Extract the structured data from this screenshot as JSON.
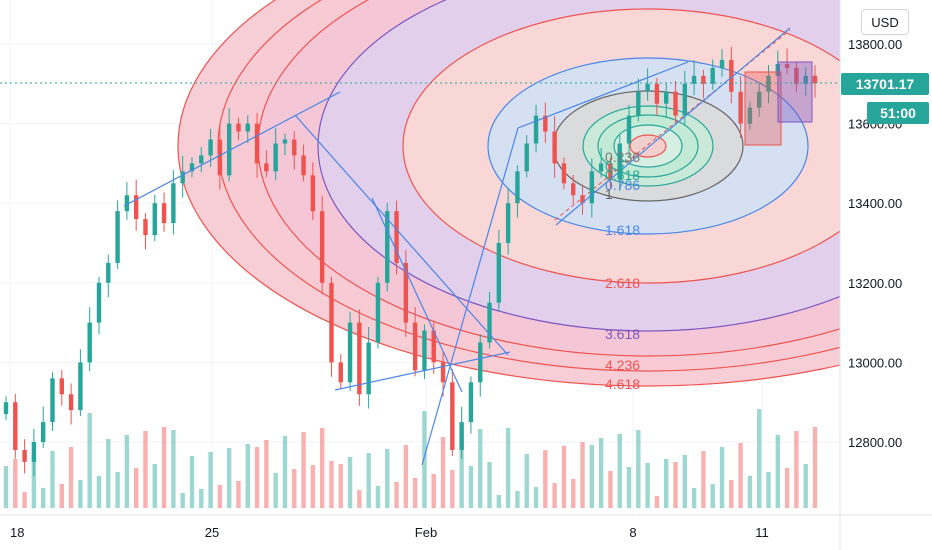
{
  "currency_label": "USD",
  "last_price": "13701.17",
  "countdown": "51:00",
  "colors": {
    "up": "#26a69a",
    "down": "#ef5350",
    "price_tag": "#26a69a",
    "trendline": "#4a86e8"
  },
  "fib_levels": [
    "0.236",
    "0.5",
    "0.618",
    "0.786",
    "1",
    "1.618",
    "2.618",
    "3.618",
    "4.236",
    "4.618"
  ],
  "chart_data": {
    "type": "candlestick",
    "x_ticks": [
      "18",
      "25",
      "Feb",
      "8",
      "11"
    ],
    "y_ticks": [
      "12800.00",
      "13000.00",
      "13200.00",
      "13400.00",
      "13600.00",
      "13800.00"
    ],
    "ylim": [
      12630,
      13900
    ],
    "grid": true,
    "series_close": [
      12900,
      12780,
      12750,
      12800,
      12850,
      12960,
      12920,
      12880,
      13000,
      13100,
      13200,
      13250,
      13380,
      13420,
      13360,
      13320,
      13400,
      13350,
      13450,
      13480,
      13500,
      13520,
      13560,
      13470,
      13600,
      13580,
      13600,
      13500,
      13480,
      13550,
      13560,
      13520,
      13470,
      13380,
      13200,
      13000,
      12950,
      13100,
      12920,
      13050,
      13200,
      13380,
      13250,
      13100,
      12980,
      13080,
      13000,
      12950,
      12780,
      12850,
      12950,
      13050,
      13150,
      13300,
      13400,
      13480,
      13550,
      13620,
      13580,
      13500,
      13450,
      13420,
      13400,
      13480,
      13500,
      13460,
      13550,
      13620,
      13680,
      13700,
      13650,
      13680,
      13620,
      13700,
      13720,
      13700,
      13740,
      13760,
      13680,
      13600,
      13640,
      13680,
      13720,
      13750,
      13740,
      13700,
      13720,
      13701.17
    ]
  }
}
